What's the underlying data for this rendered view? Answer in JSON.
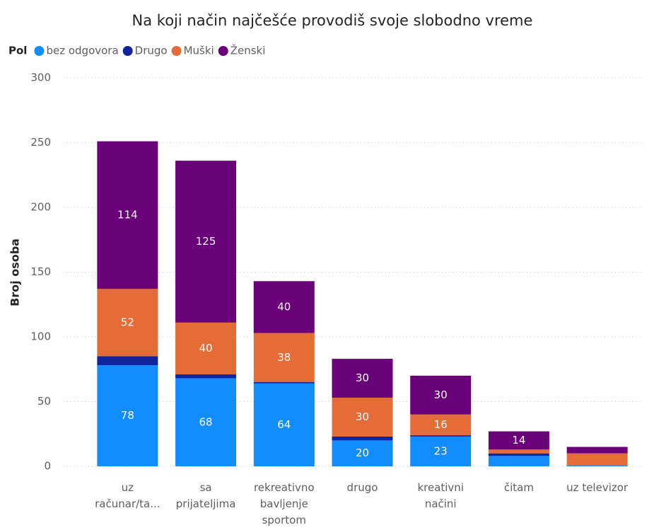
{
  "chart_data": {
    "type": "stacked_bar",
    "title": "Na koji način najčešće provodiš svoje slobodno vreme",
    "legend_title": "Pol",
    "y_label": "Broj osoba",
    "categories": [
      "uz računar/ta...",
      "sa prijateljima",
      "rekreativno bavljenje sportom",
      "drugo",
      "kreativni načini",
      "čitam",
      "uz televizor"
    ],
    "series": [
      {
        "name": "bez odgovora",
        "color": "#118dff",
        "values": [
          78,
          68,
          64,
          20,
          23,
          8,
          1
        ]
      },
      {
        "name": "Drugo",
        "color": "#12239e",
        "values": [
          7,
          3,
          1,
          3,
          1,
          2,
          0
        ]
      },
      {
        "name": "Muški",
        "color": "#e66c37",
        "values": [
          52,
          40,
          38,
          30,
          16,
          3,
          9
        ]
      },
      {
        "name": "Ženski",
        "color": "#6b007b",
        "values": [
          114,
          125,
          40,
          30,
          30,
          14,
          5
        ]
      }
    ],
    "ylim": [
      0,
      300
    ],
    "yticks": [
      0,
      50,
      100,
      150,
      200,
      250,
      300
    ],
    "grid": true
  }
}
